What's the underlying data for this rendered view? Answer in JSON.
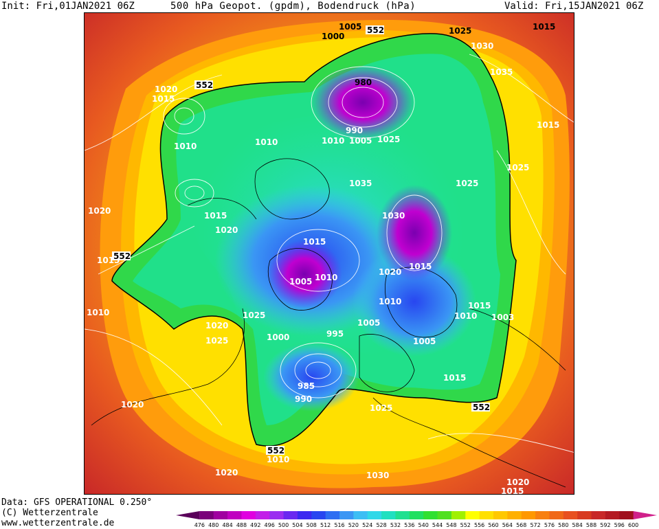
{
  "header": {
    "init": "Init: Fri,01JAN2021 06Z",
    "title": "500 hPa Geopot. (gpdm), Bodendruck (hPa)",
    "valid": "Valid: Fri,15JAN2021 06Z"
  },
  "footer": {
    "data": "Data: GFS OPERATIONAL 0.250°",
    "copyright": "(C) Wetterzentrale",
    "url": "www.wetterzentrale.de"
  },
  "legend": {
    "levels": [
      "476",
      "480",
      "484",
      "488",
      "492",
      "496",
      "500",
      "504",
      "508",
      "512",
      "516",
      "520",
      "524",
      "528",
      "532",
      "536",
      "540",
      "544",
      "548",
      "552",
      "556",
      "560",
      "564",
      "568",
      "572",
      "576",
      "580",
      "584",
      "588",
      "592",
      "596",
      "600"
    ],
    "colors": [
      "#5a005a",
      "#7a007a",
      "#a000a0",
      "#c000c0",
      "#e000e0",
      "#c21ee8",
      "#9a2ef0",
      "#6a28f0",
      "#3c28f0",
      "#2846f0",
      "#2e6ef2",
      "#3a96f4",
      "#3cbef4",
      "#30d8e8",
      "#20e0c0",
      "#20e090",
      "#20e060",
      "#30e030",
      "#50e020",
      "#a0f000",
      "#ffff00",
      "#ffe000",
      "#ffc800",
      "#ffb000",
      "#ff9800",
      "#f88010",
      "#f06818",
      "#e85020",
      "#d83a20",
      "#c82828",
      "#b41a22",
      "#a0101e",
      "#d0208a"
    ]
  },
  "map": {
    "contour_552_label": "552",
    "isobar_labels": [
      "1005",
      "1000",
      "1025",
      "1015",
      "1030",
      "1035",
      "1015",
      "1020",
      "1015",
      "1010",
      "1010",
      "980",
      "990",
      "1010",
      "1005",
      "1025",
      "1025",
      "1035",
      "1025",
      "1015",
      "1020",
      "1030",
      "1015",
      "1020",
      "1015",
      "1010",
      "1010",
      "1020",
      "1005",
      "1015",
      "1010",
      "1003",
      "1005",
      "1000",
      "995",
      "1020",
      "1025",
      "1025",
      "1005",
      "1015",
      "985",
      "990",
      "1025",
      "1020",
      "1010",
      "1020",
      "1030",
      "1010",
      "1015",
      "1020",
      "1015",
      "552",
      "552",
      "552",
      "552",
      "552"
    ]
  }
}
